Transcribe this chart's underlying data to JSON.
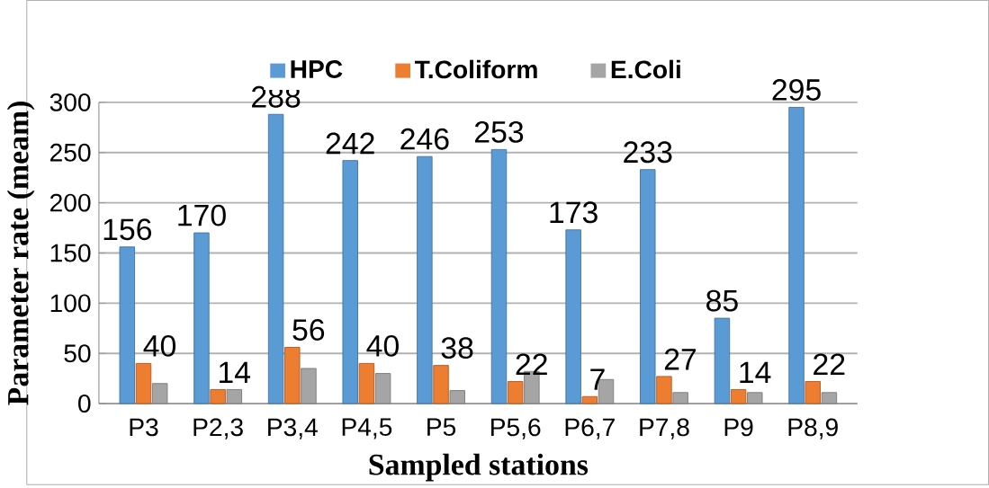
{
  "chart_data": {
    "type": "bar",
    "xlabel": "Sampled stations",
    "ylabel": "Parameter rate (meam)",
    "categories": [
      "P3",
      "P2,3",
      "P3,4",
      "P4,5",
      "P5",
      "P5,6",
      "P6,7",
      "P7,8",
      "P9",
      "P8,9"
    ],
    "series": [
      {
        "name": "HPC",
        "color": "#5b9bd5",
        "values": [
          156,
          170,
          288,
          242,
          246,
          253,
          173,
          233,
          85,
          295
        ],
        "value_labels": [
          "156",
          "170",
          "288",
          "242",
          "246",
          "253",
          "173",
          "233",
          "85",
          "295"
        ]
      },
      {
        "name": "T.Coliform",
        "color": "#ed7d31",
        "values": [
          40,
          14,
          56,
          40,
          38,
          22,
          7,
          27,
          14,
          22
        ],
        "value_labels": [
          "40",
          "14",
          "56",
          "40",
          "38",
          "22",
          "7",
          "27",
          "14",
          "22"
        ]
      },
      {
        "name": "E.Coli",
        "color": "#a5a5a5",
        "values": [
          20,
          14,
          35,
          30,
          13,
          32,
          24,
          11,
          11,
          11
        ]
      }
    ],
    "ylim": [
      0,
      300
    ],
    "yticks": [
      0,
      50,
      100,
      150,
      200,
      250,
      300
    ],
    "grid": "y",
    "legend": "top"
  }
}
